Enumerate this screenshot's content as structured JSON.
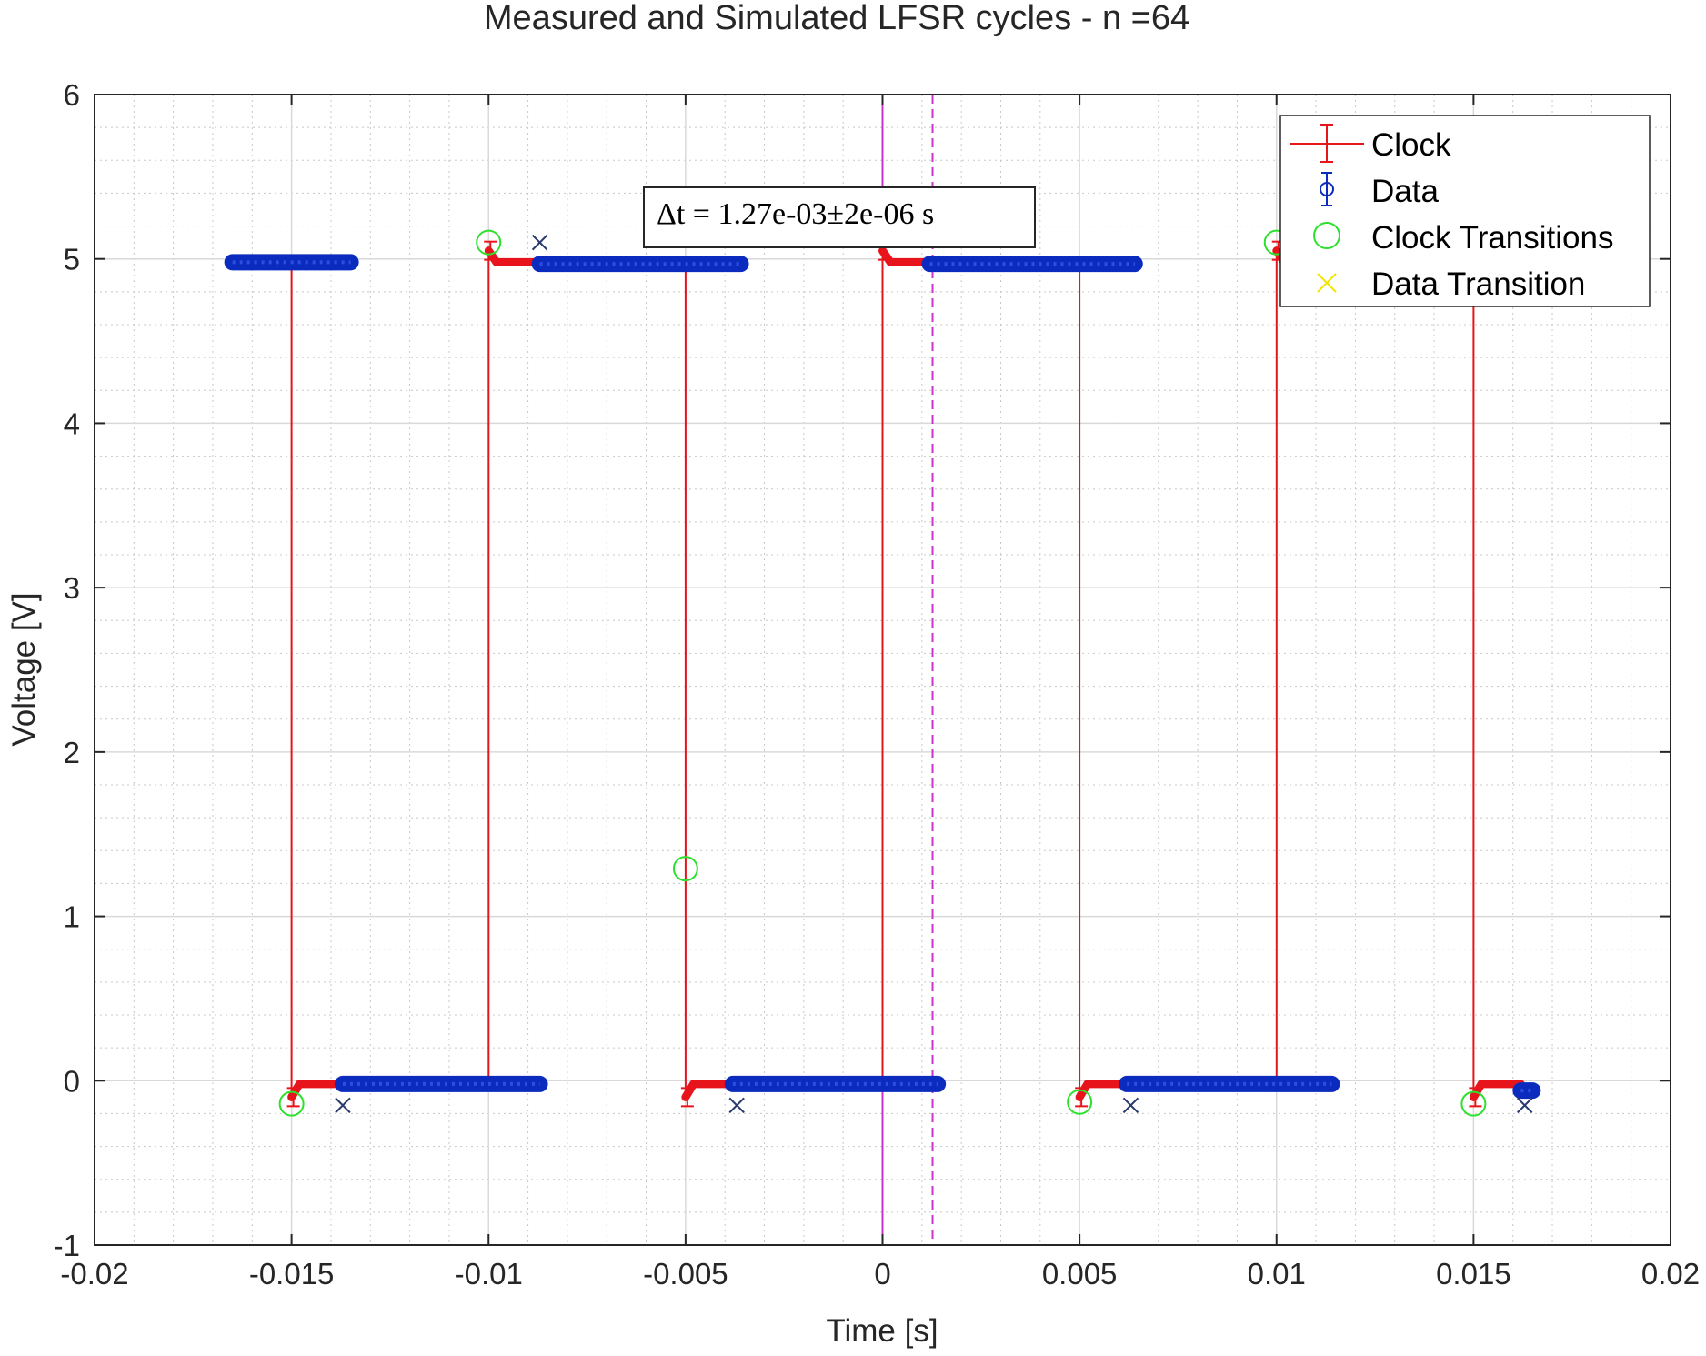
{
  "chart_data": {
    "type": "line",
    "title": "Measured and Simulated LFSR cycles - n =64",
    "xlabel": "Time [s]",
    "ylabel": "Voltage [V]",
    "xlim": [
      -0.02,
      0.02
    ],
    "ylim": [
      -1,
      6
    ],
    "xticks": [
      -0.02,
      -0.015,
      -0.01,
      -0.005,
      0,
      0.005,
      0.01,
      0.015,
      0.02
    ],
    "xtick_labels": [
      "-0.02",
      "-0.015",
      "-0.01",
      "-0.005",
      "0",
      "0.005",
      "0.01",
      "0.015",
      "0.02"
    ],
    "yticks": [
      -1,
      0,
      1,
      2,
      3,
      4,
      5,
      6
    ],
    "ytick_labels": [
      "-1",
      "0",
      "1",
      "2",
      "3",
      "4",
      "5",
      "6"
    ],
    "grid": true,
    "minor_grid": true,
    "legend_position": "top-right",
    "colors": {
      "clock": "#e8141c",
      "data": "#0a2bbd",
      "clock_transitions": "#2ee02e",
      "data_transition": "#f2e600",
      "marker_lines": "#cc33cc"
    },
    "legend": [
      "Clock",
      "Data",
      "Clock Transitions",
      "Data Transition"
    ],
    "series": [
      {
        "name": "Clock",
        "x": [
          -0.015,
          -0.015,
          -0.0148,
          -0.0138,
          -0.01,
          -0.01,
          -0.0098,
          -0.0088,
          -0.005,
          -0.005,
          -0.0048,
          -0.0038,
          0,
          0,
          0.0002,
          0.0012,
          0.005,
          0.005,
          0.0052,
          0.0062,
          0.01,
          0.01,
          0.0102,
          0.0112,
          0.015,
          0.015,
          0.0152,
          0.0162
        ],
        "y": [
          5.0,
          -0.1,
          -0.02,
          -0.02,
          -0.02,
          5.05,
          4.98,
          4.98,
          4.98,
          -0.1,
          -0.02,
          -0.02,
          -0.02,
          5.05,
          4.98,
          4.98,
          4.98,
          -0.1,
          -0.02,
          -0.02,
          -0.02,
          5.05,
          4.98,
          4.98,
          4.98,
          -0.1,
          -0.02,
          -0.02
        ]
      },
      {
        "name": "Data",
        "segments": [
          {
            "x0": -0.0165,
            "x1": -0.0135,
            "y": 4.98
          },
          {
            "x0": -0.0137,
            "x1": -0.0087,
            "y": -0.02
          },
          {
            "x0": -0.0087,
            "x1": -0.0036,
            "y": 4.97
          },
          {
            "x0": -0.0038,
            "x1": 0.0014,
            "y": -0.02
          },
          {
            "x0": 0.0012,
            "x1": 0.0064,
            "y": 4.97
          },
          {
            "x0": 0.0062,
            "x1": 0.0114,
            "y": -0.02
          },
          {
            "x0": 0.0162,
            "x1": 0.0165,
            "y": -0.06
          }
        ]
      },
      {
        "name": "Clock Transitions",
        "x": [
          -0.015,
          -0.01,
          -0.005,
          0.005,
          0.01,
          0.015
        ],
        "y": [
          -0.14,
          5.1,
          1.29,
          -0.13,
          5.1,
          -0.14
        ]
      },
      {
        "name": "Data Transition",
        "x": [
          -0.0137,
          -0.0087,
          -0.0037,
          0.0063,
          0.0163
        ],
        "y": [
          -0.15,
          5.1,
          -0.15,
          -0.15,
          -0.15
        ]
      }
    ],
    "vertical_lines": [
      {
        "x": 0,
        "style": "solid"
      },
      {
        "x": 0.00127,
        "style": "dashed"
      }
    ],
    "annotation": "Δt = 1.27e-03±2e-06 s"
  }
}
